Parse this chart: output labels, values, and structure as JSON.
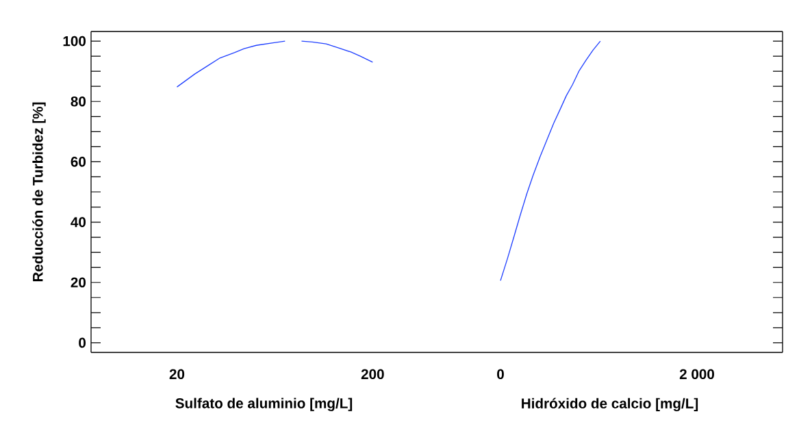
{
  "chart_data": [
    {
      "type": "line",
      "xlabel": "Sulfato de aluminio [mg/L]",
      "ylabel": "Reducción de Turbidez [%]",
      "series": [
        {
          "color": "#2040ff",
          "x": [
            20,
            36.4,
            49,
            59,
            72.9,
            81.7,
            93,
            109.4,
            119.4,
            127,
            134.6,
            144.6,
            157.2,
            169.8,
            179.9,
            188.7,
            200
          ],
          "values": [
            84.8,
            89.1,
            92.0,
            94.3,
            96.2,
            97.5,
            98.6,
            99.5,
            100,
            null,
            100,
            99.7,
            99.1,
            97.6,
            96.4,
            95.0,
            93.0
          ]
        }
      ],
      "xlim": [
        -59,
        259
      ],
      "xticks": [
        20,
        200
      ],
      "ylim": [
        -3.2,
        103.2
      ],
      "yticks": [
        0,
        {
          "value": 5,
          "label": null
        },
        {
          "value": 10,
          "label": null
        },
        {
          "value": 15,
          "label": null
        },
        20,
        {
          "value": 25,
          "label": null
        },
        {
          "value": 30,
          "label": null
        },
        {
          "value": 35,
          "label": null
        },
        40,
        {
          "value": 45,
          "label": null
        },
        {
          "value": 50,
          "label": null
        },
        {
          "value": 55,
          "label": null
        },
        60,
        {
          "value": 65,
          "label": null
        },
        {
          "value": 70,
          "label": null
        },
        {
          "value": 75,
          "label": null
        },
        80,
        {
          "value": 85,
          "label": null
        },
        {
          "value": 90,
          "label": null
        },
        {
          "value": 95,
          "label": null
        },
        100
      ]
    },
    {
      "type": "line",
      "xlabel": "Hidróxido de calcio [mg/L]",
      "tick_labels": "x",
      "series": [
        {
          "color": "#2040ff",
          "x": [
            0,
            71,
            141,
            202,
            266,
            333,
            403,
            473,
            542,
            606,
            670,
            732,
            801,
            871,
            941,
            1016
          ],
          "values": [
            20.6,
            27.9,
            35.6,
            42.4,
            49.2,
            55.6,
            61.7,
            67.3,
            72.8,
            77.3,
            81.9,
            85.5,
            90.2,
            93.7,
            97.0,
            100
          ]
        }
      ],
      "xlim": [
        -648,
        2871
      ],
      "xticks": [
        0,
        {
          "value": 2000,
          "label": "2 000"
        }
      ],
      "ylim": [
        -3.2,
        103.2
      ],
      "yticks": [
        0,
        {
          "value": 5,
          "label": null
        },
        {
          "value": 10,
          "label": null
        },
        {
          "value": 15,
          "label": null
        },
        20,
        {
          "value": 25,
          "label": null
        },
        {
          "value": 30,
          "label": null
        },
        {
          "value": 35,
          "label": null
        },
        40,
        {
          "value": 45,
          "label": null
        },
        {
          "value": 50,
          "label": null
        },
        {
          "value": 55,
          "label": null
        },
        60,
        {
          "value": 65,
          "label": null
        },
        {
          "value": 70,
          "label": null
        },
        {
          "value": 75,
          "label": null
        },
        80,
        {
          "value": 85,
          "label": null
        },
        {
          "value": 90,
          "label": null
        },
        {
          "value": 95,
          "label": null
        },
        100
      ]
    }
  ]
}
